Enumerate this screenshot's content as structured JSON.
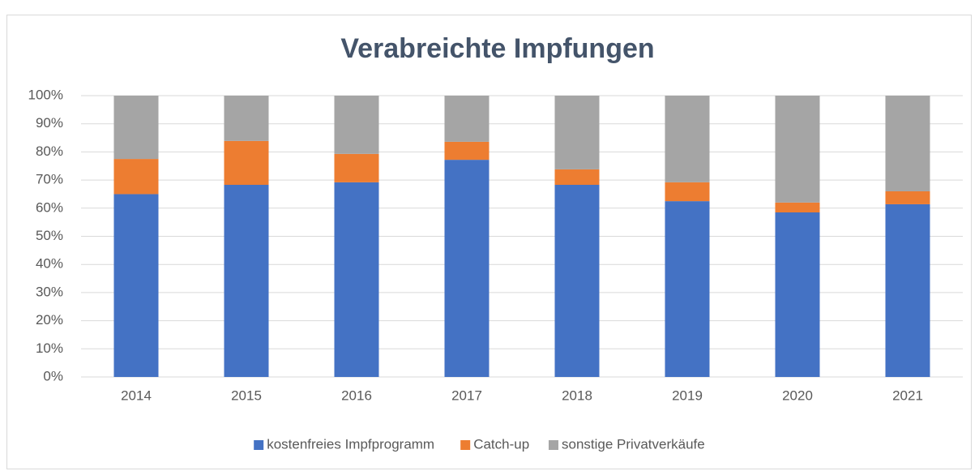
{
  "chart_data": {
    "type": "stacked_bar",
    "title": "Verabreichte Impfungen",
    "categories": [
      "2014",
      "2015",
      "2016",
      "2017",
      "2018",
      "2019",
      "2020",
      "2021"
    ],
    "series": [
      {
        "name": "kostenfreies Impfprogramm",
        "color": "#4472c4",
        "values": [
          65,
          68.3,
          69.2,
          77.2,
          68.3,
          62.5,
          58.5,
          61.4
        ]
      },
      {
        "name": "Catch-up",
        "color": "#ed7d31",
        "values": [
          12.5,
          15.6,
          10.1,
          6.4,
          5.5,
          6.7,
          3.5,
          4.6
        ]
      },
      {
        "name": "sonstige Privatverkäufe",
        "color": "#a5a5a5",
        "values": [
          22.5,
          16.1,
          20.7,
          16.4,
          26.2,
          30.8,
          38,
          34
        ]
      }
    ],
    "ylim": [
      0,
      100
    ],
    "yticks": [
      {
        "value": 0,
        "label": "0%"
      },
      {
        "value": 10,
        "label": "10%"
      },
      {
        "value": 20,
        "label": "20%"
      },
      {
        "value": 30,
        "label": "30%"
      },
      {
        "value": 40,
        "label": "40%"
      },
      {
        "value": 50,
        "label": "50%"
      },
      {
        "value": 60,
        "label": "60%"
      },
      {
        "value": 70,
        "label": "70%"
      },
      {
        "value": 80,
        "label": "80%"
      },
      {
        "value": 90,
        "label": "90%"
      },
      {
        "value": 100,
        "label": "100%"
      }
    ],
    "grid": true,
    "legend": "bottom"
  }
}
